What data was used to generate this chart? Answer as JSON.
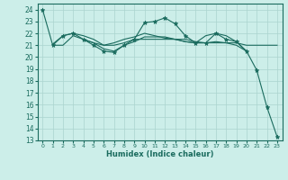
{
  "xlabel": "Humidex (Indice chaleur)",
  "xlim": [
    -0.5,
    23.5
  ],
  "ylim": [
    13,
    24.5
  ],
  "yticks": [
    13,
    14,
    15,
    16,
    17,
    18,
    19,
    20,
    21,
    22,
    23,
    24
  ],
  "xticks": [
    0,
    1,
    2,
    3,
    4,
    5,
    6,
    7,
    8,
    9,
    10,
    11,
    12,
    13,
    14,
    15,
    16,
    17,
    18,
    19,
    20,
    21,
    22,
    23
  ],
  "bg_color": "#cceee9",
  "line_color": "#1a6b5e",
  "grid_color": "#aad4ce",
  "lines": [
    {
      "x": [
        0,
        1,
        2,
        3,
        4,
        5,
        6,
        7,
        8,
        9,
        10,
        11,
        12,
        13,
        14,
        15,
        16,
        17,
        18,
        19,
        20,
        21,
        22,
        23
      ],
      "y": [
        24,
        21,
        21.8,
        22,
        21.5,
        21.0,
        20.5,
        20.4,
        21.0,
        21.5,
        22.9,
        23.0,
        23.3,
        22.8,
        21.8,
        21.2,
        21.2,
        22.0,
        21.5,
        21.3,
        20.5,
        18.9,
        15.8,
        13.3
      ],
      "marker": "*",
      "markersize": 3.5
    },
    {
      "x": [
        1,
        2,
        3,
        4,
        5,
        6,
        7,
        8,
        9,
        10,
        11,
        12,
        13,
        14,
        15,
        16,
        17,
        18,
        19,
        20,
        21,
        22,
        23
      ],
      "y": [
        21.0,
        21.0,
        21.8,
        21.5,
        21.2,
        21.0,
        21.0,
        21.2,
        21.5,
        21.5,
        21.5,
        21.5,
        21.5,
        21.5,
        21.3,
        21.2,
        21.2,
        21.2,
        21.2,
        21.0,
        21.0,
        21.0,
        21.0
      ],
      "marker": null,
      "markersize": 0
    },
    {
      "x": [
        4,
        5,
        6,
        7,
        8,
        9,
        10,
        11,
        12,
        13,
        14,
        15,
        16,
        17,
        18,
        19,
        20
      ],
      "y": [
        21.5,
        21.2,
        20.7,
        20.5,
        21.0,
        21.3,
        21.7,
        21.7,
        21.7,
        21.5,
        21.3,
        21.2,
        21.2,
        21.3,
        21.2,
        21.0,
        20.5
      ],
      "marker": null,
      "markersize": 0
    },
    {
      "x": [
        1,
        2,
        3,
        4,
        5,
        6,
        7,
        8,
        9,
        10,
        11,
        12,
        13,
        14,
        15,
        16,
        17,
        18,
        19,
        20
      ],
      "y": [
        21.1,
        21.8,
        22.0,
        21.8,
        21.5,
        21.0,
        21.2,
        21.5,
        21.7,
        22.0,
        21.8,
        21.6,
        21.5,
        21.3,
        21.2,
        21.8,
        22.0,
        21.8,
        21.3,
        20.5
      ],
      "marker": null,
      "markersize": 0
    }
  ]
}
